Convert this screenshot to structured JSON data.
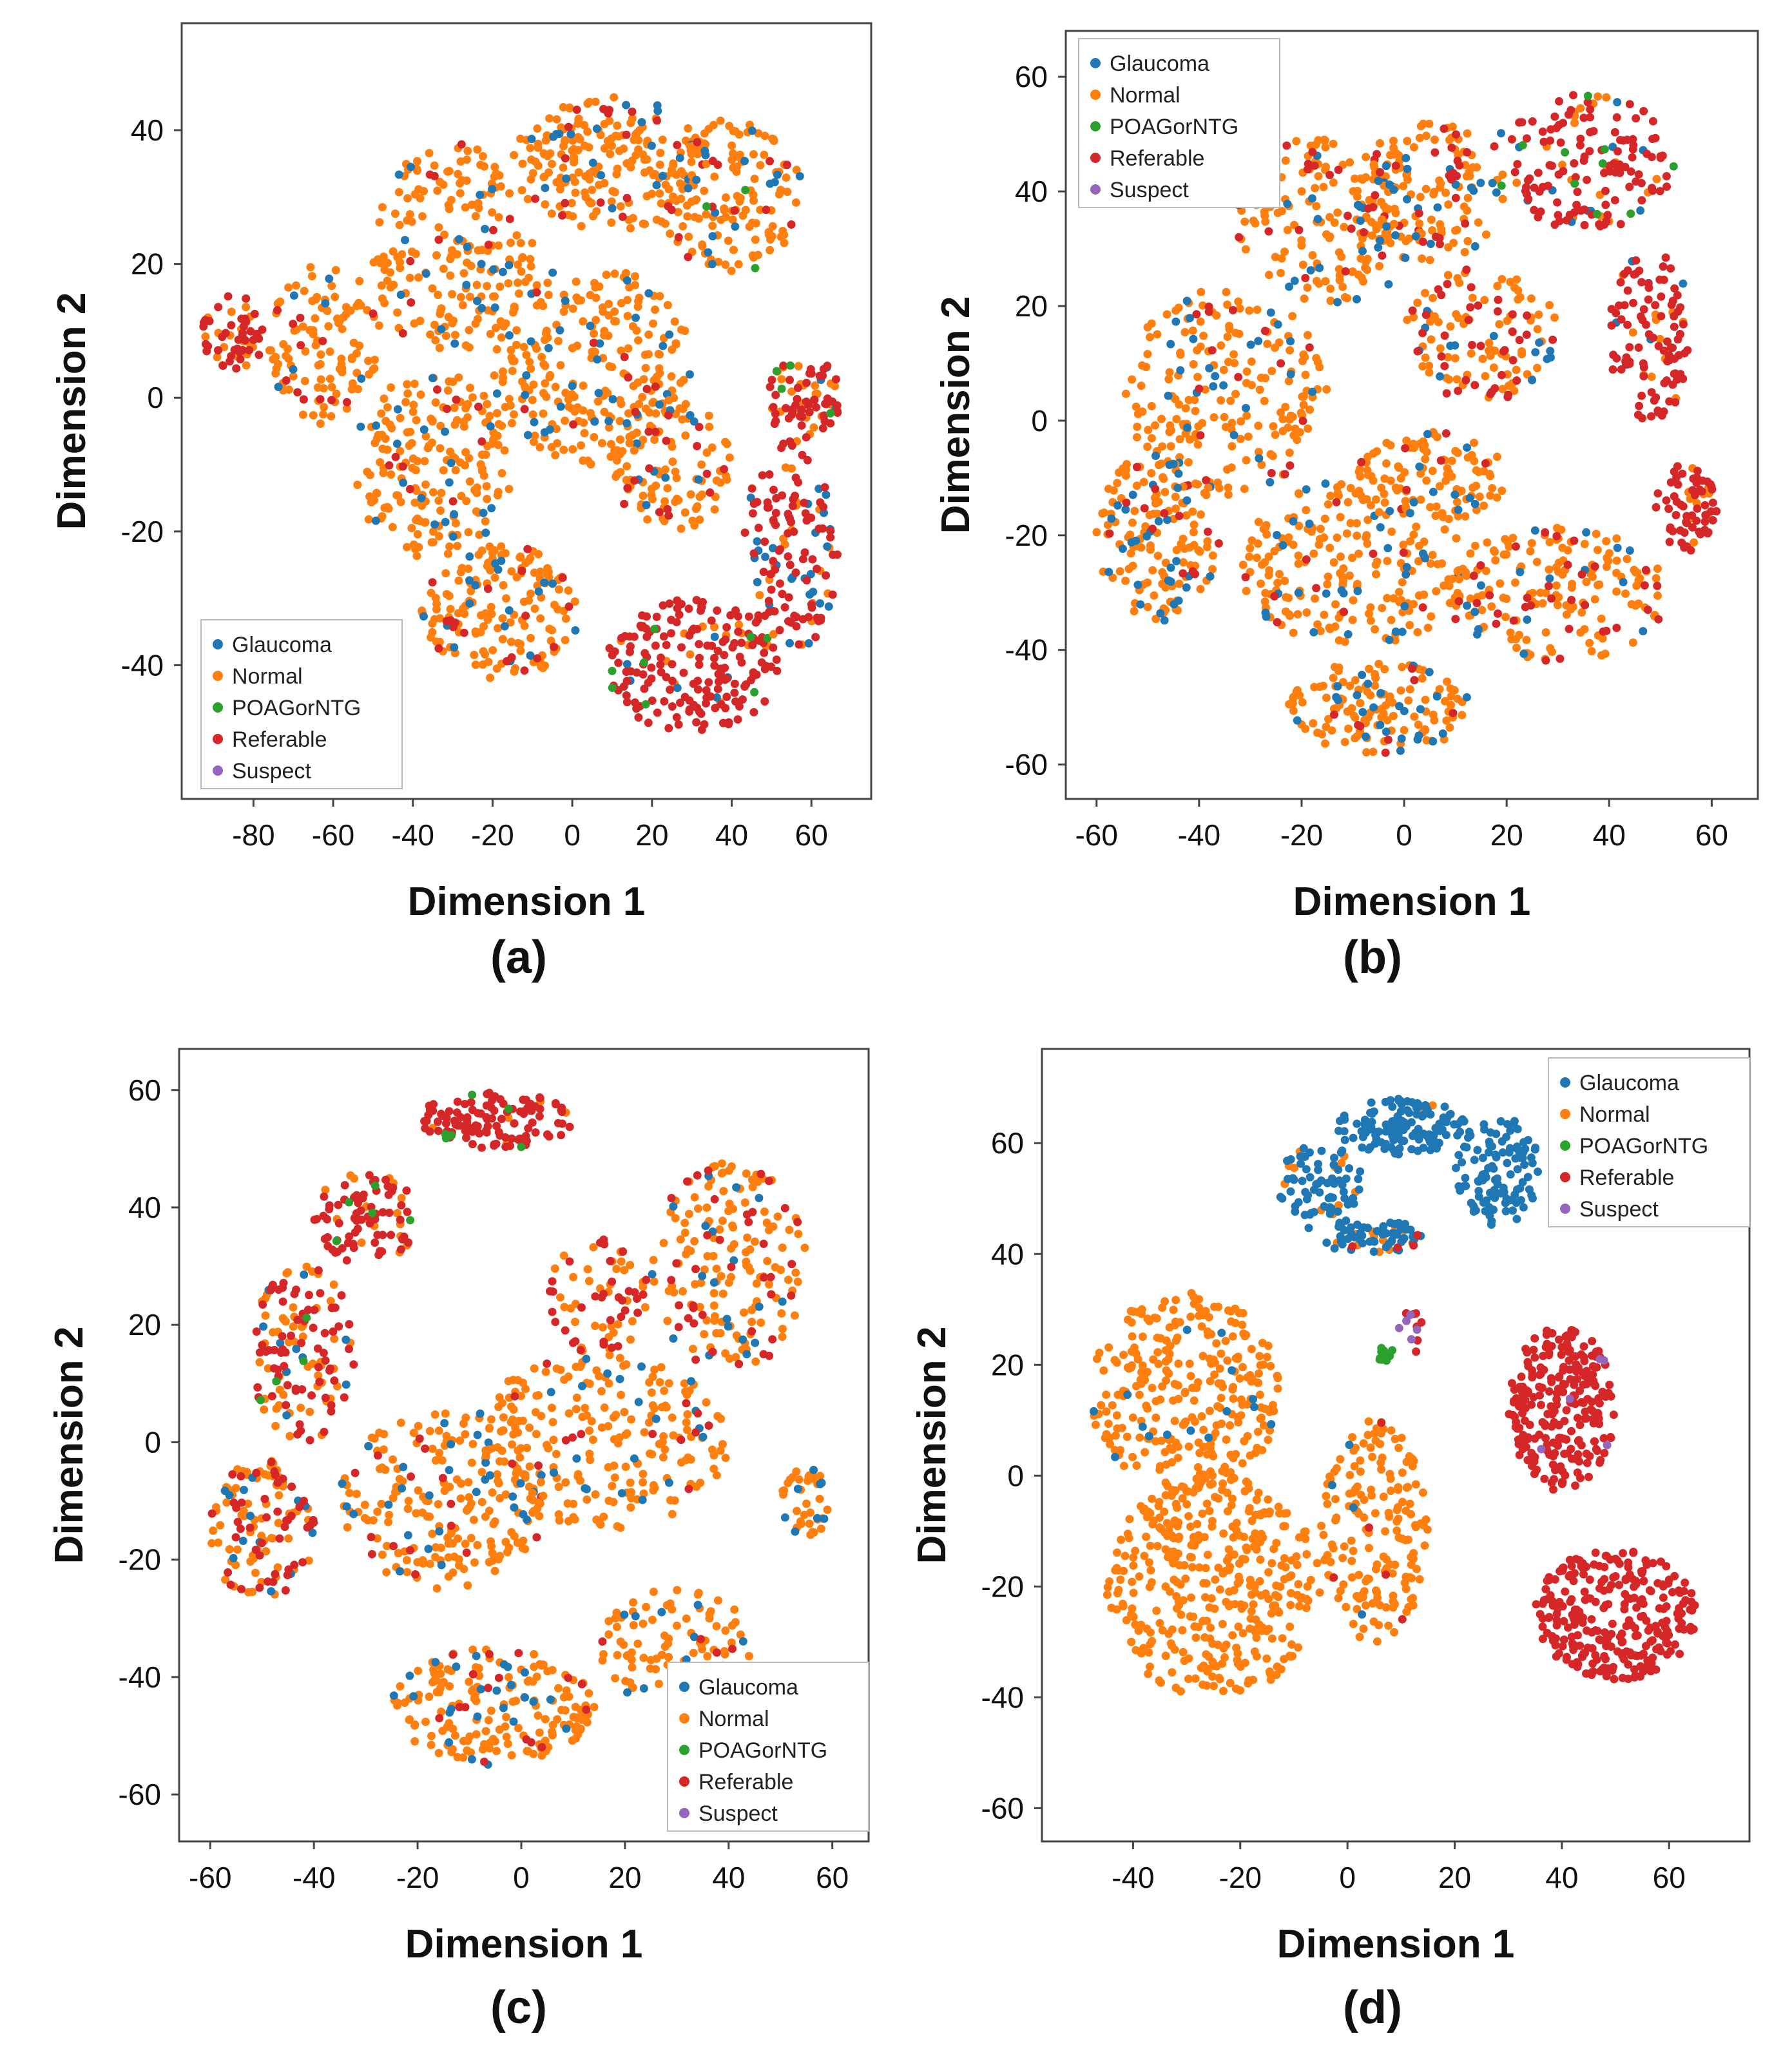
{
  "figure": {
    "colors": {
      "Glaucoma": "#1f77b4",
      "Normal": "#ff7f0e",
      "POAGorNTG": "#2ca02c",
      "Referable": "#d62728",
      "Suspect": "#9467bd"
    }
  },
  "chart_data": [
    {
      "type": "scatter",
      "panel": "(a)",
      "xlabel": "Dimension 1",
      "ylabel": "Dimension 2",
      "xlim": [
        -98,
        75
      ],
      "ylim": [
        -60,
        56
      ],
      "xticks": [
        -80,
        -60,
        -40,
        -20,
        0,
        20,
        40,
        60
      ],
      "yticks": [
        -40,
        -20,
        0,
        20,
        40
      ],
      "legend": {
        "position": "bottom-left",
        "entries": [
          "Glaucoma",
          "Normal",
          "POAGorNTG",
          "Referable",
          "Suspect"
        ]
      },
      "clusters": [
        {
          "cx": -85,
          "cy": 10,
          "rx": 8,
          "ry": 6,
          "mix": {
            "Referable": 0.7,
            "Normal": 0.3
          },
          "n": 60
        },
        {
          "cx": -62,
          "cy": 8,
          "rx": 14,
          "ry": 12,
          "mix": {
            "Normal": 0.85,
            "Referable": 0.1,
            "Glaucoma": 0.05
          },
          "n": 120
        },
        {
          "cx": -30,
          "cy": 22,
          "rx": 20,
          "ry": 16,
          "mix": {
            "Normal": 0.85,
            "Glaucoma": 0.1,
            "Referable": 0.05
          },
          "n": 200
        },
        {
          "cx": 10,
          "cy": 35,
          "rx": 25,
          "ry": 10,
          "mix": {
            "Normal": 0.82,
            "Glaucoma": 0.1,
            "Referable": 0.08
          },
          "n": 220
        },
        {
          "cx": 40,
          "cy": 30,
          "rx": 18,
          "ry": 12,
          "mix": {
            "Normal": 0.8,
            "Glaucoma": 0.1,
            "Referable": 0.08,
            "POAGorNTG": 0.02
          },
          "n": 150
        },
        {
          "cx": 5,
          "cy": 5,
          "rx": 25,
          "ry": 15,
          "mix": {
            "Normal": 0.85,
            "Glaucoma": 0.12,
            "Referable": 0.03
          },
          "n": 260
        },
        {
          "cx": -35,
          "cy": -10,
          "rx": 20,
          "ry": 14,
          "mix": {
            "Normal": 0.85,
            "Glaucoma": 0.1,
            "Referable": 0.05
          },
          "n": 200
        },
        {
          "cx": -18,
          "cy": -32,
          "rx": 20,
          "ry": 10,
          "mix": {
            "Normal": 0.8,
            "Glaucoma": 0.1,
            "Referable": 0.1
          },
          "n": 180
        },
        {
          "cx": 30,
          "cy": -40,
          "rx": 22,
          "ry": 10,
          "mix": {
            "Referable": 0.85,
            "Normal": 0.08,
            "POAGorNTG": 0.04,
            "Glaucoma": 0.03
          },
          "n": 200
        },
        {
          "cx": 55,
          "cy": -22,
          "rx": 12,
          "ry": 16,
          "mix": {
            "Referable": 0.65,
            "Glaucoma": 0.2,
            "Normal": 0.15
          },
          "n": 140
        },
        {
          "cx": 58,
          "cy": 0,
          "rx": 10,
          "ry": 6,
          "mix": {
            "Referable": 0.6,
            "Normal": 0.3,
            "POAGorNTG": 0.05,
            "Glaucoma": 0.05
          },
          "n": 80
        },
        {
          "cx": 25,
          "cy": -10,
          "rx": 15,
          "ry": 10,
          "mix": {
            "Normal": 0.75,
            "Referable": 0.15,
            "Glaucoma": 0.1
          },
          "n": 110
        }
      ]
    },
    {
      "type": "scatter",
      "panel": "(b)",
      "xlabel": "Dimension 1",
      "ylabel": "Dimension 2",
      "xlim": [
        -66,
        69
      ],
      "ylim": [
        -66,
        68
      ],
      "xticks": [
        -60,
        -40,
        -20,
        0,
        20,
        40,
        60
      ],
      "yticks": [
        -60,
        -40,
        -20,
        0,
        20,
        40,
        60
      ],
      "legend": {
        "position": "top-left",
        "entries": [
          "Glaucoma",
          "Normal",
          "POAGorNTG",
          "Referable",
          "Suspect"
        ]
      },
      "clusters": [
        {
          "cx": -15,
          "cy": 35,
          "rx": 18,
          "ry": 15,
          "mix": {
            "Normal": 0.75,
            "Glaucoma": 0.12,
            "Referable": 0.13
          },
          "n": 170
        },
        {
          "cx": 5,
          "cy": 40,
          "rx": 15,
          "ry": 12,
          "mix": {
            "Normal": 0.7,
            "Glaucoma": 0.15,
            "Referable": 0.15
          },
          "n": 150
        },
        {
          "cx": 35,
          "cy": 45,
          "rx": 18,
          "ry": 12,
          "mix": {
            "Referable": 0.75,
            "Normal": 0.12,
            "POAGorNTG": 0.06,
            "Glaucoma": 0.07
          },
          "n": 160
        },
        {
          "cx": 48,
          "cy": 15,
          "rx": 8,
          "ry": 15,
          "mix": {
            "Referable": 0.85,
            "Normal": 0.1,
            "Glaucoma": 0.05
          },
          "n": 110
        },
        {
          "cx": -35,
          "cy": 5,
          "rx": 20,
          "ry": 18,
          "mix": {
            "Normal": 0.8,
            "Glaucoma": 0.12,
            "Referable": 0.08
          },
          "n": 220
        },
        {
          "cx": -48,
          "cy": -20,
          "rx": 12,
          "ry": 15,
          "mix": {
            "Normal": 0.72,
            "Glaucoma": 0.2,
            "Referable": 0.08
          },
          "n": 160
        },
        {
          "cx": -10,
          "cy": -25,
          "rx": 22,
          "ry": 15,
          "mix": {
            "Normal": 0.82,
            "Glaucoma": 0.13,
            "Referable": 0.05
          },
          "n": 220
        },
        {
          "cx": -5,
          "cy": -50,
          "rx": 18,
          "ry": 8,
          "mix": {
            "Normal": 0.78,
            "Glaucoma": 0.17,
            "Referable": 0.05
          },
          "n": 150
        },
        {
          "cx": 30,
          "cy": -30,
          "rx": 22,
          "ry": 12,
          "mix": {
            "Normal": 0.75,
            "Referable": 0.17,
            "Glaucoma": 0.08
          },
          "n": 200
        },
        {
          "cx": 55,
          "cy": -15,
          "rx": 6,
          "ry": 8,
          "mix": {
            "Referable": 0.85,
            "Normal": 0.15
          },
          "n": 70
        },
        {
          "cx": 15,
          "cy": 15,
          "rx": 15,
          "ry": 12,
          "mix": {
            "Normal": 0.6,
            "Referable": 0.3,
            "Glaucoma": 0.1
          },
          "n": 130
        },
        {
          "cx": 5,
          "cy": -10,
          "rx": 15,
          "ry": 8,
          "mix": {
            "Normal": 0.85,
            "Glaucoma": 0.1,
            "Referable": 0.05
          },
          "n": 110
        }
      ]
    },
    {
      "type": "scatter",
      "panel": "(c)",
      "xlabel": "Dimension 1",
      "ylabel": "Dimension 2",
      "xlim": [
        -66,
        67
      ],
      "ylim": [
        -68,
        67
      ],
      "xticks": [
        -60,
        -40,
        -20,
        0,
        20,
        40,
        60
      ],
      "yticks": [
        -60,
        -40,
        -20,
        0,
        20,
        40,
        60
      ],
      "legend": {
        "position": "bottom-right",
        "entries": [
          "Glaucoma",
          "Normal",
          "POAGorNTG",
          "Referable",
          "Suspect"
        ]
      },
      "clusters": [
        {
          "cx": -5,
          "cy": 55,
          "rx": 15,
          "ry": 5,
          "mix": {
            "Referable": 0.9,
            "Normal": 0.05,
            "POAGorNTG": 0.05
          },
          "n": 120
        },
        {
          "cx": -30,
          "cy": 38,
          "rx": 10,
          "ry": 8,
          "mix": {
            "Referable": 0.75,
            "Normal": 0.2,
            "POAGorNTG": 0.05
          },
          "n": 90
        },
        {
          "cx": -42,
          "cy": 15,
          "rx": 10,
          "ry": 15,
          "mix": {
            "Referable": 0.5,
            "Normal": 0.4,
            "Glaucoma": 0.07,
            "POAGorNTG": 0.03
          },
          "n": 140
        },
        {
          "cx": -50,
          "cy": -15,
          "rx": 10,
          "ry": 12,
          "mix": {
            "Normal": 0.55,
            "Referable": 0.35,
            "Glaucoma": 0.1
          },
          "n": 130
        },
        {
          "cx": -15,
          "cy": -10,
          "rx": 20,
          "ry": 15,
          "mix": {
            "Normal": 0.8,
            "Glaucoma": 0.12,
            "Referable": 0.08
          },
          "n": 220
        },
        {
          "cx": 15,
          "cy": 0,
          "rx": 25,
          "ry": 15,
          "mix": {
            "Normal": 0.85,
            "Glaucoma": 0.1,
            "Referable": 0.05
          },
          "n": 240
        },
        {
          "cx": 40,
          "cy": 30,
          "rx": 15,
          "ry": 18,
          "mix": {
            "Normal": 0.7,
            "Referable": 0.2,
            "Glaucoma": 0.1
          },
          "n": 190
        },
        {
          "cx": 15,
          "cy": 25,
          "rx": 10,
          "ry": 10,
          "mix": {
            "Referable": 0.5,
            "Normal": 0.5
          },
          "n": 70
        },
        {
          "cx": -5,
          "cy": -45,
          "rx": 20,
          "ry": 10,
          "mix": {
            "Normal": 0.8,
            "Glaucoma": 0.12,
            "Referable": 0.08
          },
          "n": 200
        },
        {
          "cx": 30,
          "cy": -35,
          "rx": 15,
          "ry": 10,
          "mix": {
            "Normal": 0.85,
            "Glaucoma": 0.1,
            "Referable": 0.05
          },
          "n": 110
        },
        {
          "cx": 55,
          "cy": -10,
          "rx": 5,
          "ry": 6,
          "mix": {
            "Normal": 0.8,
            "Glaucoma": 0.2
          },
          "n": 40
        }
      ]
    },
    {
      "type": "scatter",
      "panel": "(d)",
      "xlabel": "Dimension 1",
      "ylabel": "Dimension 2",
      "xlim": [
        -57,
        75
      ],
      "ylim": [
        -66,
        77
      ],
      "xticks": [
        -40,
        -20,
        0,
        20,
        40,
        60
      ],
      "yticks": [
        -60,
        -40,
        -20,
        0,
        20,
        40,
        60
      ],
      "legend": {
        "position": "top-right",
        "entries": [
          "Glaucoma",
          "Normal",
          "POAGorNTG",
          "Referable",
          "Suspect"
        ]
      },
      "clusters": [
        {
          "cx": 10,
          "cy": 63,
          "rx": 12,
          "ry": 5,
          "mix": {
            "Glaucoma": 0.98,
            "Normal": 0.02
          },
          "n": 130
        },
        {
          "cx": 28,
          "cy": 55,
          "rx": 8,
          "ry": 10,
          "mix": {
            "Glaucoma": 1.0
          },
          "n": 110
        },
        {
          "cx": -5,
          "cy": 52,
          "rx": 8,
          "ry": 8,
          "mix": {
            "Glaucoma": 0.85,
            "Normal": 0.15
          },
          "n": 80
        },
        {
          "cx": 5,
          "cy": 43,
          "rx": 10,
          "ry": 3,
          "mix": {
            "Glaucoma": 0.8,
            "Normal": 0.15,
            "Referable": 0.05
          },
          "n": 70
        },
        {
          "cx": -30,
          "cy": 15,
          "rx": 18,
          "ry": 18,
          "mix": {
            "Normal": 0.95,
            "Glaucoma": 0.05
          },
          "n": 300
        },
        {
          "cx": -25,
          "cy": -20,
          "rx": 20,
          "ry": 20,
          "mix": {
            "Normal": 1.0
          },
          "n": 380
        },
        {
          "cx": 5,
          "cy": -10,
          "rx": 10,
          "ry": 20,
          "mix": {
            "Normal": 0.95,
            "Referable": 0.03,
            "Glaucoma": 0.02
          },
          "n": 180
        },
        {
          "cx": 7,
          "cy": 22,
          "rx": 1.5,
          "ry": 1.5,
          "mix": {
            "POAGorNTG": 1.0
          },
          "n": 18
        },
        {
          "cx": 12,
          "cy": 26,
          "rx": 3,
          "ry": 4,
          "mix": {
            "Referable": 0.6,
            "Suspect": 0.4
          },
          "n": 12
        },
        {
          "cx": 40,
          "cy": 12,
          "rx": 10,
          "ry": 15,
          "mix": {
            "Referable": 0.98,
            "Suspect": 0.02
          },
          "n": 250
        },
        {
          "cx": 50,
          "cy": -25,
          "rx": 15,
          "ry": 12,
          "mix": {
            "Referable": 1.0
          },
          "n": 280
        }
      ]
    }
  ]
}
